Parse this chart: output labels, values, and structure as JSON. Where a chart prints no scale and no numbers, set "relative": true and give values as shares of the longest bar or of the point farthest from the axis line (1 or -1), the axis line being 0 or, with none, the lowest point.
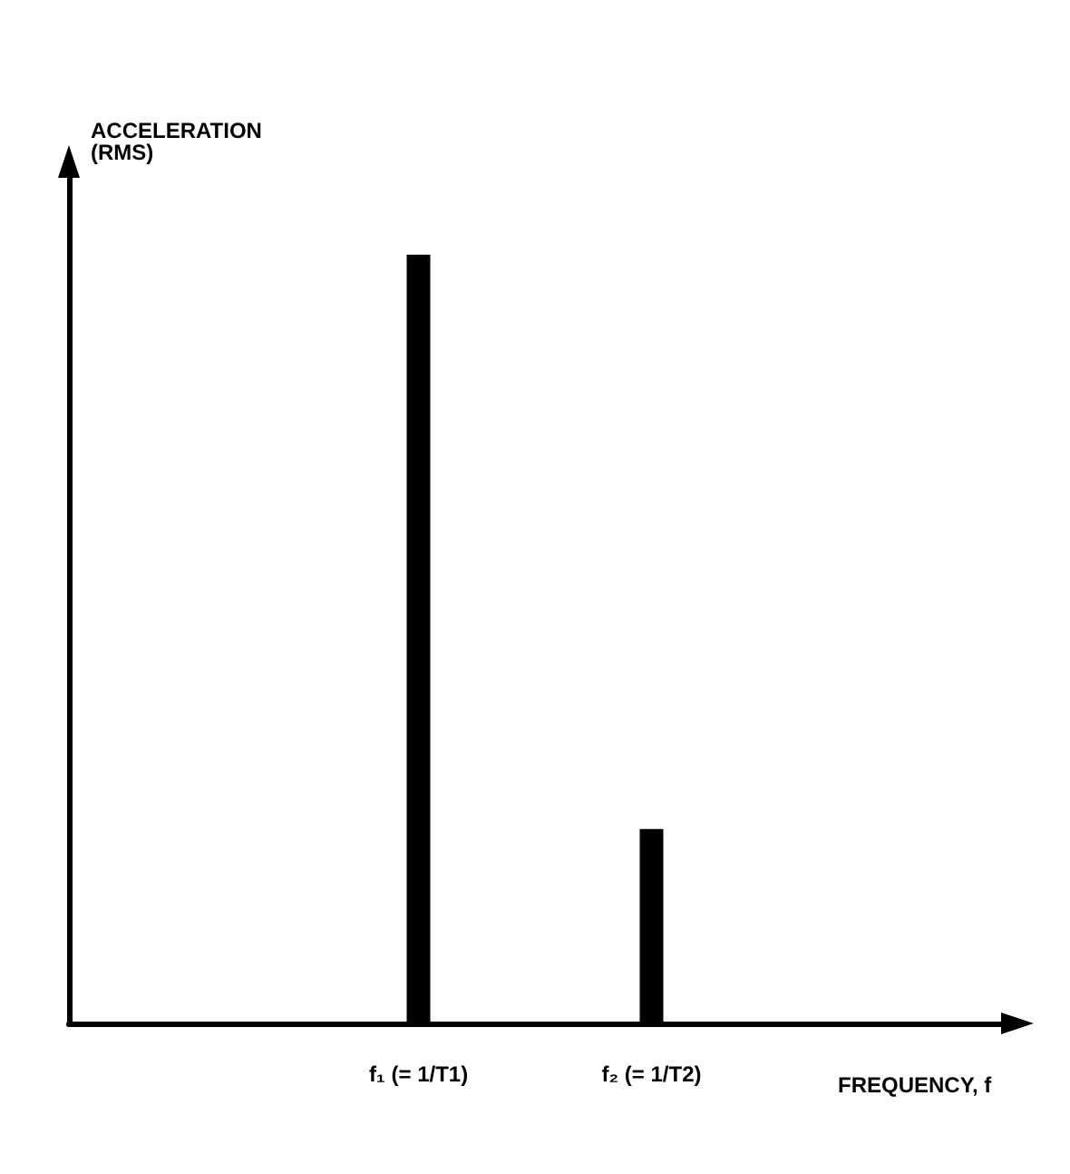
{
  "chart_data": {
    "type": "bar",
    "relative": true,
    "xlabel": "FREQUENCY, f",
    "ylabel": "ACCELERATION\n(RMS)",
    "categories": [
      null,
      "f₁ (= 1/T1)",
      "f₂ (= 1/T2)",
      null
    ],
    "values": [
      null,
      1,
      0.253,
      null
    ],
    "color": "#000000",
    "grid": false
  }
}
